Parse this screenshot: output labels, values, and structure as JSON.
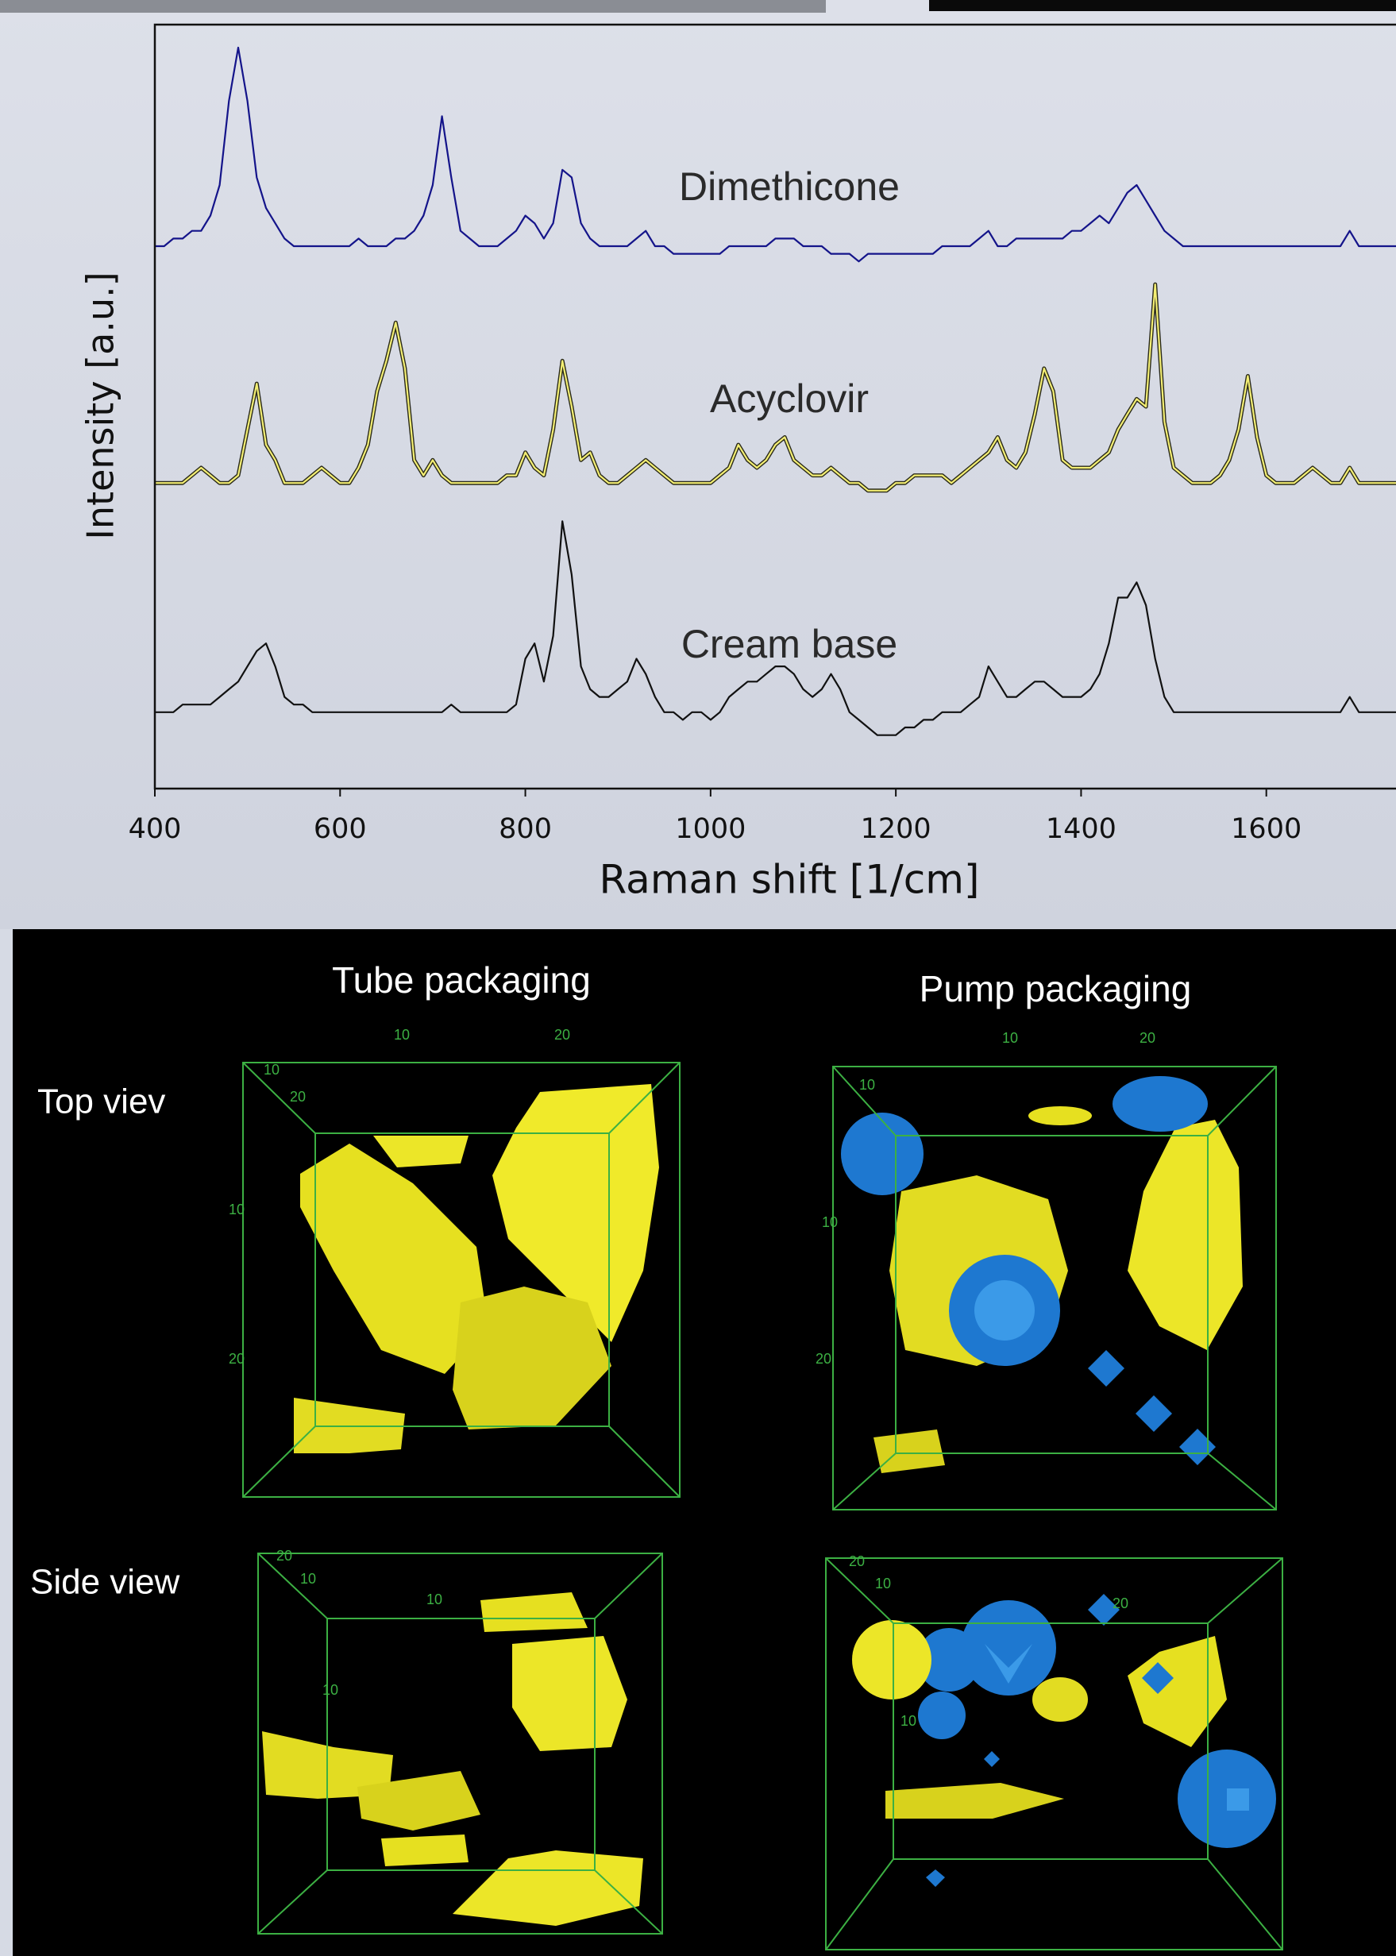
{
  "chart_data": {
    "type": "line",
    "xlabel": "Raman shift [1/cm]",
    "ylabel": "Intensity [a.u.]",
    "xlim": [
      400,
      1740
    ],
    "xticks": [
      400,
      600,
      800,
      1000,
      1200,
      1400,
      1600
    ],
    "ylim": [
      0,
      100
    ],
    "x": [
      400,
      410,
      420,
      430,
      440,
      450,
      460,
      470,
      480,
      490,
      500,
      510,
      520,
      530,
      540,
      550,
      560,
      570,
      580,
      590,
      600,
      610,
      620,
      630,
      640,
      650,
      660,
      670,
      680,
      690,
      700,
      710,
      720,
      730,
      740,
      750,
      760,
      770,
      780,
      790,
      800,
      810,
      820,
      830,
      840,
      850,
      860,
      870,
      880,
      890,
      900,
      910,
      920,
      930,
      940,
      950,
      960,
      970,
      980,
      990,
      1000,
      1010,
      1020,
      1030,
      1040,
      1050,
      1060,
      1070,
      1080,
      1090,
      1100,
      1110,
      1120,
      1130,
      1140,
      1150,
      1160,
      1170,
      1180,
      1190,
      1200,
      1210,
      1220,
      1230,
      1240,
      1250,
      1260,
      1270,
      1280,
      1290,
      1300,
      1310,
      1320,
      1330,
      1340,
      1350,
      1360,
      1370,
      1380,
      1390,
      1400,
      1410,
      1420,
      1430,
      1440,
      1450,
      1460,
      1470,
      1480,
      1490,
      1500,
      1510,
      1520,
      1530,
      1540,
      1550,
      1560,
      1570,
      1580,
      1590,
      1600,
      1610,
      1620,
      1630,
      1640,
      1650,
      1660,
      1670,
      1680,
      1690,
      1700,
      1710,
      1720,
      1730,
      1740
    ],
    "series": [
      {
        "name": "Dimethicone",
        "color": "#14148a",
        "values": [
          71,
          71,
          72,
          72,
          73,
          73,
          75,
          79,
          90,
          97,
          90,
          80,
          76,
          74,
          72,
          71,
          71,
          71,
          71,
          71,
          71,
          71,
          72,
          71,
          71,
          71,
          72,
          72,
          73,
          75,
          79,
          88,
          80,
          73,
          72,
          71,
          71,
          71,
          72,
          73,
          75,
          74,
          72,
          74,
          81,
          80,
          74,
          72,
          71,
          71,
          71,
          71,
          72,
          73,
          71,
          71,
          70,
          70,
          70,
          70,
          70,
          70,
          71,
          71,
          71,
          71,
          71,
          72,
          72,
          72,
          71,
          71,
          71,
          70,
          70,
          70,
          69,
          70,
          70,
          70,
          70,
          70,
          70,
          70,
          70,
          71,
          71,
          71,
          71,
          72,
          73,
          71,
          71,
          72,
          72,
          72,
          72,
          72,
          72,
          73,
          73,
          74,
          75,
          74,
          76,
          78,
          79,
          77,
          75,
          73,
          72,
          71,
          71,
          71,
          71,
          71,
          71,
          71,
          71,
          71,
          71,
          71,
          71,
          71,
          71,
          71,
          71,
          71,
          71,
          73,
          71,
          71,
          71,
          71,
          71
        ]
      },
      {
        "name": "Acyclovir",
        "color": "#f4ef74",
        "outline": "#2a2a1a",
        "values": [
          40,
          40,
          40,
          40,
          41,
          42,
          41,
          40,
          40,
          41,
          47,
          53,
          45,
          43,
          40,
          40,
          40,
          41,
          42,
          41,
          40,
          40,
          42,
          45,
          52,
          56,
          61,
          55,
          43,
          41,
          43,
          41,
          40,
          40,
          40,
          40,
          40,
          40,
          41,
          41,
          44,
          42,
          41,
          47,
          56,
          50,
          43,
          44,
          41,
          40,
          40,
          41,
          42,
          43,
          42,
          41,
          40,
          40,
          40,
          40,
          40,
          41,
          42,
          45,
          43,
          42,
          43,
          45,
          46,
          43,
          42,
          41,
          41,
          42,
          41,
          40,
          40,
          39,
          39,
          39,
          40,
          40,
          41,
          41,
          41,
          41,
          40,
          41,
          42,
          43,
          44,
          46,
          43,
          42,
          44,
          49,
          55,
          52,
          43,
          42,
          42,
          42,
          43,
          44,
          47,
          49,
          51,
          50,
          66,
          48,
          42,
          41,
          40,
          40,
          40,
          41,
          43,
          47,
          54,
          46,
          41,
          40,
          40,
          40,
          41,
          42,
          41,
          40,
          40,
          42,
          40,
          40,
          40,
          40,
          40
        ]
      },
      {
        "name": "Cream base",
        "color": "#111111",
        "values": [
          10,
          10,
          10,
          11,
          11,
          11,
          11,
          12,
          13,
          14,
          16,
          18,
          19,
          16,
          12,
          11,
          11,
          10,
          10,
          10,
          10,
          10,
          10,
          10,
          10,
          10,
          10,
          10,
          10,
          10,
          10,
          10,
          11,
          10,
          10,
          10,
          10,
          10,
          10,
          11,
          17,
          19,
          14,
          20,
          35,
          28,
          16,
          13,
          12,
          12,
          13,
          14,
          17,
          15,
          12,
          10,
          10,
          9,
          10,
          10,
          9,
          10,
          12,
          13,
          14,
          14,
          15,
          16,
          16,
          15,
          13,
          12,
          13,
          15,
          13,
          10,
          9,
          8,
          7,
          7,
          7,
          8,
          8,
          9,
          9,
          10,
          10,
          10,
          11,
          12,
          16,
          14,
          12,
          12,
          13,
          14,
          14,
          13,
          12,
          12,
          12,
          13,
          15,
          19,
          25,
          25,
          27,
          24,
          17,
          12,
          10,
          10,
          10,
          10,
          10,
          10,
          10,
          10,
          10,
          10,
          10,
          10,
          10,
          10,
          10,
          10,
          10,
          10,
          10,
          12,
          10,
          10,
          10,
          10,
          10
        ]
      }
    ]
  },
  "panel": {
    "columns": [
      "Tube packaging",
      "Pump packaging"
    ],
    "rows": [
      "Top viev",
      "Side view"
    ],
    "boxes": [
      {
        "labels": [
          "10",
          "20",
          "10",
          "20",
          "10",
          "20"
        ]
      },
      {
        "labels": [
          "10",
          "20",
          "10",
          "10",
          "20"
        ]
      },
      {
        "labels": [
          "20",
          "10",
          "10",
          "10"
        ]
      },
      {
        "labels": [
          "20",
          "10",
          "20",
          "10"
        ]
      }
    ]
  }
}
